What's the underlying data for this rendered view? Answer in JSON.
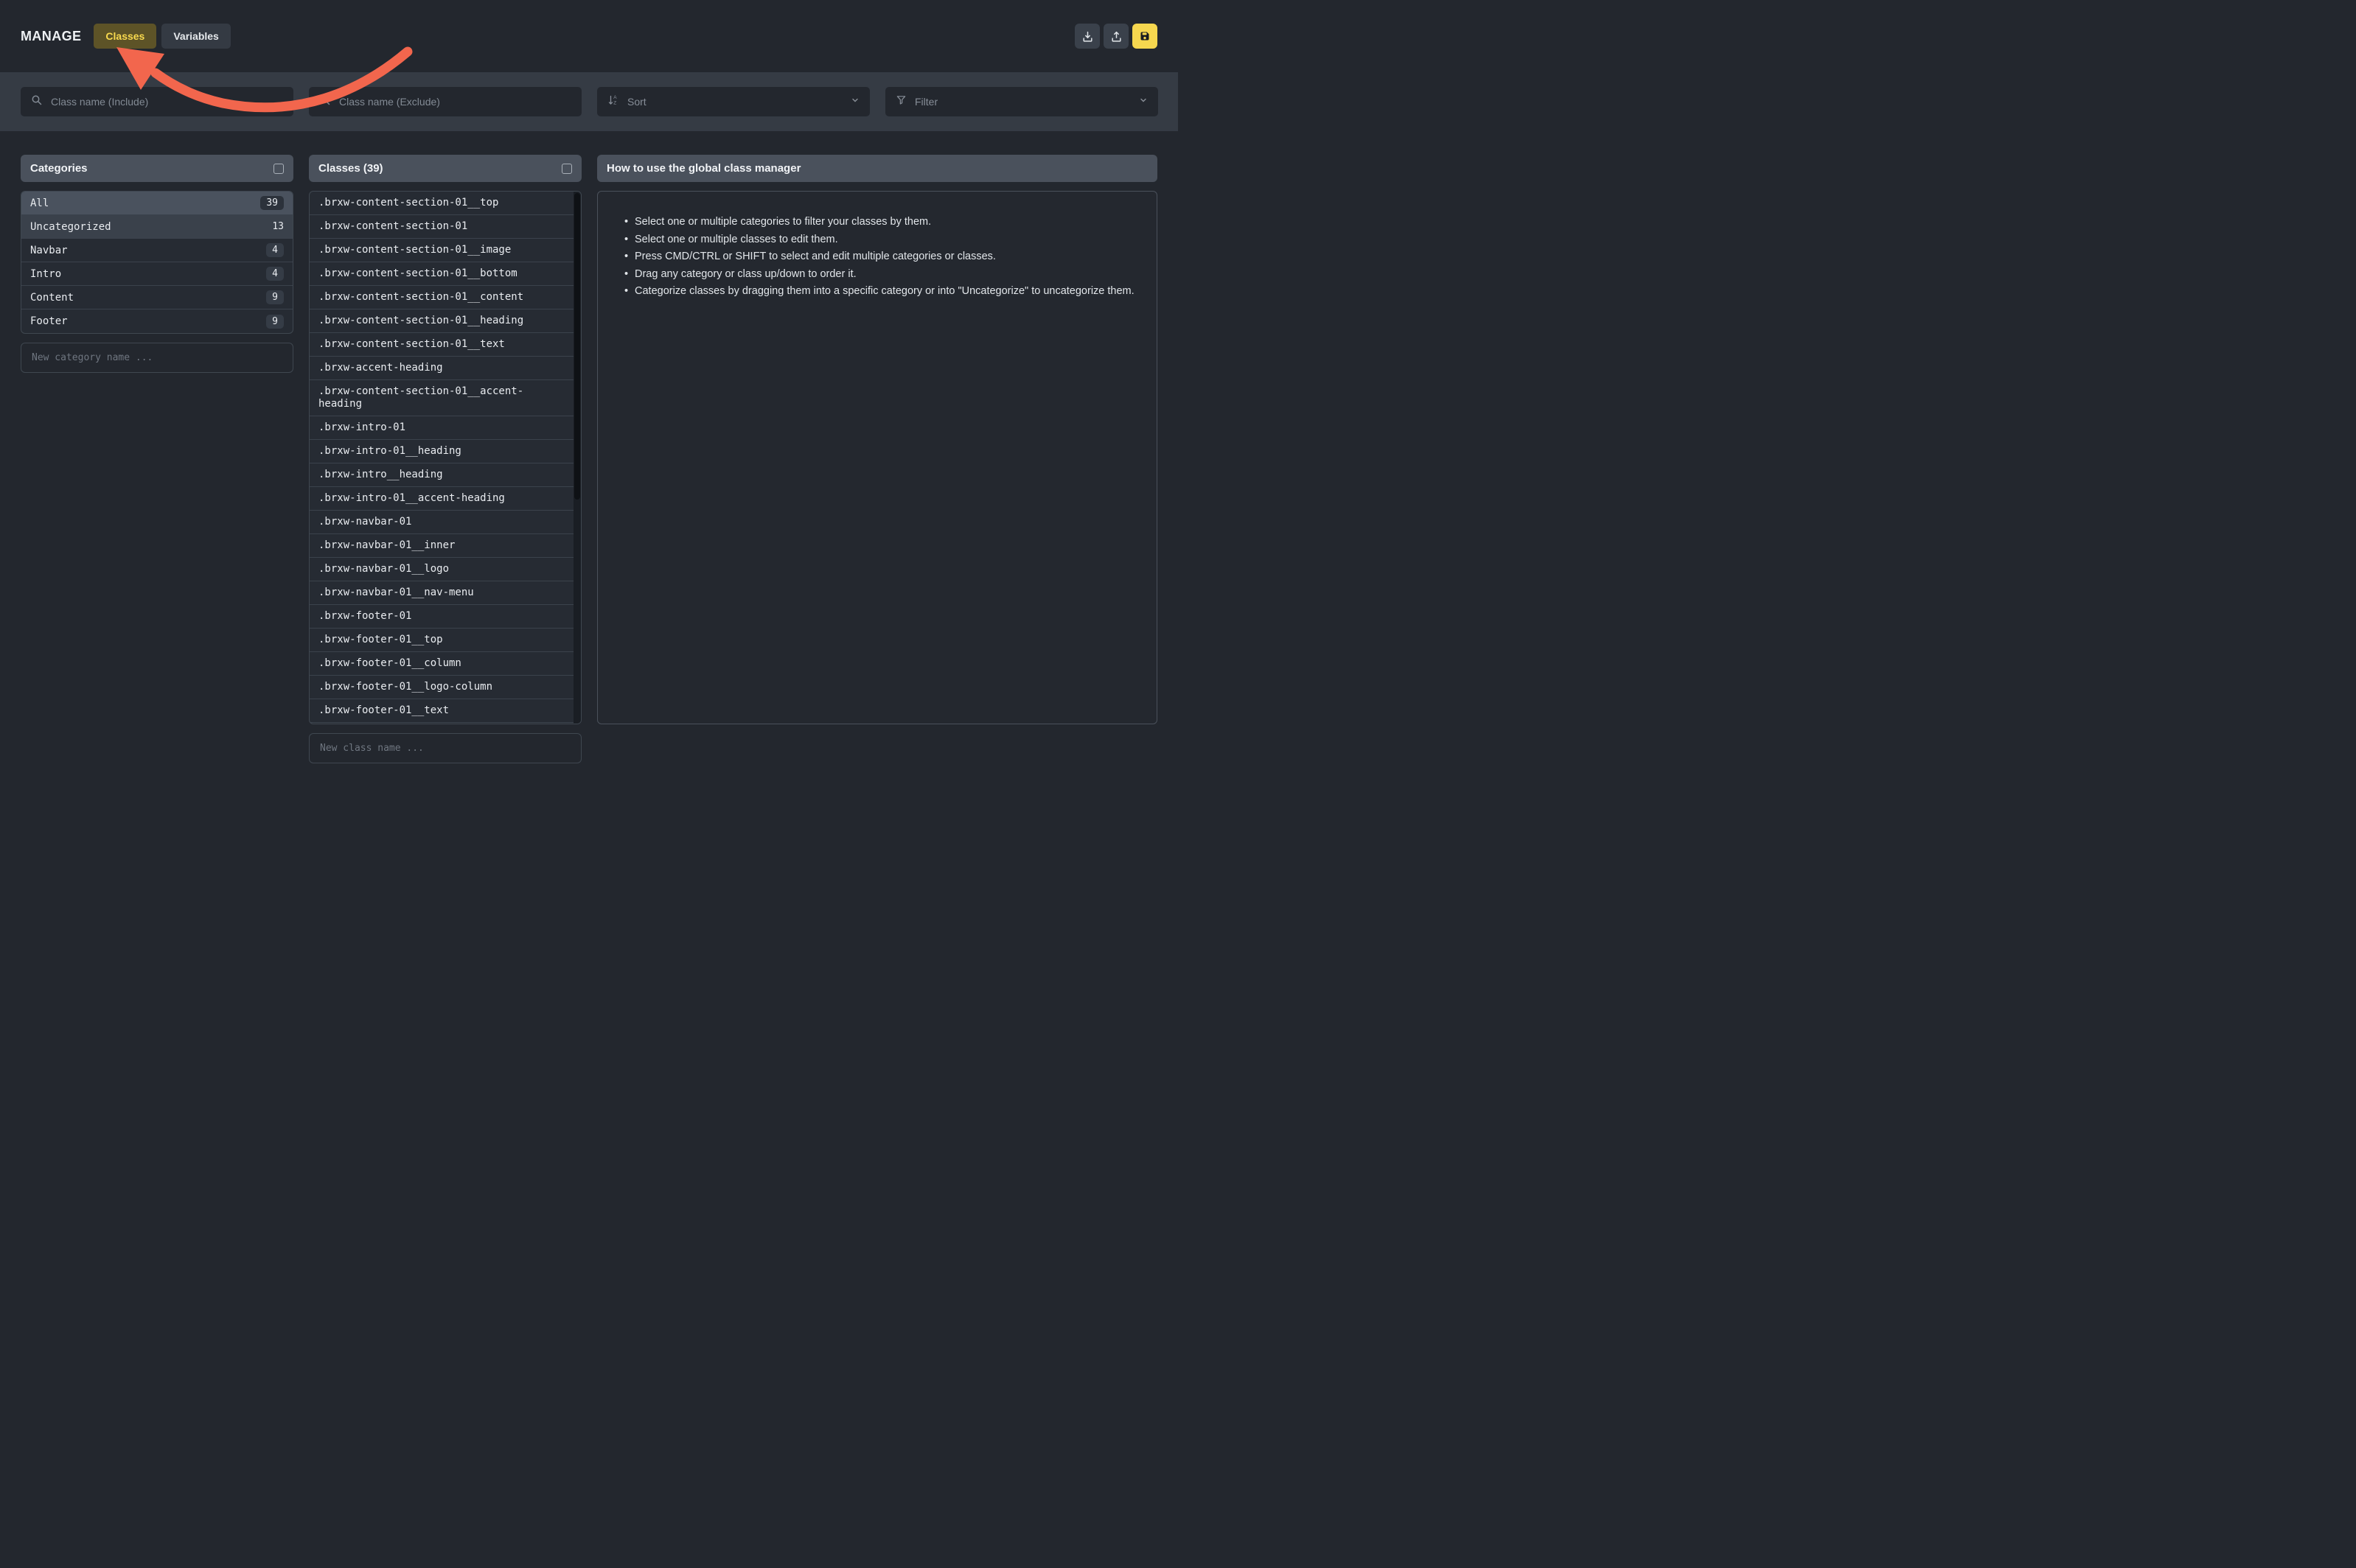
{
  "header": {
    "title": "MANAGE",
    "tabs": [
      {
        "label": "Classes",
        "active": true
      },
      {
        "label": "Variables",
        "active": false
      }
    ],
    "action_icons": [
      "download-icon",
      "upload-icon",
      "save-icon"
    ]
  },
  "filters": {
    "include_placeholder": "Class name (Include)",
    "exclude_placeholder": "Class name (Exclude)",
    "sort_label": "Sort",
    "filter_label": "Filter"
  },
  "categories": {
    "title": "Categories",
    "items": [
      {
        "name": "All",
        "count": "39",
        "row_style": "selected",
        "badge": true
      },
      {
        "name": "Uncategorized",
        "count": "13",
        "row_style": "alt",
        "badge": false
      },
      {
        "name": "Navbar",
        "count": "4",
        "row_style": "plain-bg",
        "badge": true
      },
      {
        "name": "Intro",
        "count": "4",
        "row_style": "plain-bg",
        "badge": true
      },
      {
        "name": "Content",
        "count": "9",
        "row_style": "plain-bg",
        "badge": true
      },
      {
        "name": "Footer",
        "count": "9",
        "row_style": "plain-bg",
        "badge": true
      }
    ],
    "new_placeholder": "New category name ..."
  },
  "classes": {
    "title": "Classes (39)",
    "items": [
      ".brxw-content-section-01__top",
      ".brxw-content-section-01",
      ".brxw-content-section-01__image",
      ".brxw-content-section-01__bottom",
      ".brxw-content-section-01__content",
      ".brxw-content-section-01__heading",
      ".brxw-content-section-01__text",
      ".brxw-accent-heading",
      ".brxw-content-section-01__accent-heading",
      ".brxw-intro-01",
      ".brxw-intro-01__heading",
      ".brxw-intro__heading",
      ".brxw-intro-01__accent-heading",
      ".brxw-navbar-01",
      ".brxw-navbar-01__inner",
      ".brxw-navbar-01__logo",
      ".brxw-navbar-01__nav-menu",
      ".brxw-footer-01",
      ".brxw-footer-01__top",
      ".brxw-footer-01__column",
      ".brxw-footer-01__logo-column",
      ".brxw-footer-01__text"
    ],
    "new_placeholder": "New class name ..."
  },
  "help": {
    "title": "How to use the global class manager",
    "bullets": [
      "Select one or multiple categories to filter your classes by them.",
      "Select one or multiple classes to edit them.",
      "Press CMD/CTRL or SHIFT to select and edit multiple categories or classes.",
      "Drag any category or class up/down to order it.",
      "Categorize classes by dragging them into a specific category or into \"Uncategorize\" to uncategorize them."
    ]
  },
  "colors": {
    "background": "#23272e",
    "band": "#353b44",
    "panel_header": "#4a515c",
    "accent_yellow": "#f6d74f",
    "active_tab_text": "#f8d94e",
    "active_tab_bg": "#5d5327",
    "arrow_red": "#f2664d",
    "row_selected": "#4a525e",
    "row_alt": "#3a414b"
  }
}
